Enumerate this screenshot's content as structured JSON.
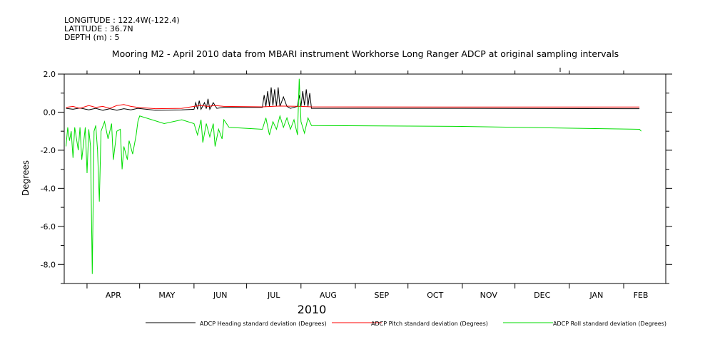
{
  "header": {
    "longitude": "LONGITUDE : 122.4W(-122.4)",
    "latitude": "LATITUDE : 36.7N",
    "depth": "DEPTH (m) : 5"
  },
  "chart_data": {
    "type": "line",
    "title": "Mooring M2 - April 2010 data from MBARI instrument Workhorse Long Ranger ADCP at original sampling intervals",
    "xlabel": "2010",
    "ylabel": "Degrees",
    "ylim": [
      -9.0,
      2.0
    ],
    "xlim": [
      "2010-03-19",
      "2011-02-25"
    ],
    "x_ticks": [
      "2010-04-01",
      "2010-05-01",
      "2010-06-01",
      "2010-07-01",
      "2010-08-01",
      "2010-09-01",
      "2010-10-01",
      "2010-11-01",
      "2010-12-01",
      "2011-01-01",
      "2011-02-01"
    ],
    "x_tick_labels": [
      "APR",
      "MAY",
      "JUN",
      "JUL",
      "AUG",
      "SEP",
      "OCT",
      "NOV",
      "DEC",
      "JAN",
      "FEB"
    ],
    "y_ticks": [
      2.0,
      0.0,
      -2.0,
      -4.0,
      -6.0,
      -8.0
    ],
    "y_tick_labels": [
      "2.0",
      "0.0",
      "-2.0",
      "-4.0",
      "-6.0",
      "-8.0"
    ],
    "grid": false,
    "legend_position": "bottom",
    "series": [
      {
        "name": "ADCP Heading standard deviation (Degrees)",
        "color": "#000000",
        "points": [
          [
            "2010-03-20",
            0.2
          ],
          [
            "2010-03-24",
            0.15
          ],
          [
            "2010-03-28",
            0.22
          ],
          [
            "2010-04-02",
            0.12
          ],
          [
            "2010-04-06",
            0.2
          ],
          [
            "2010-04-10",
            0.1
          ],
          [
            "2010-04-14",
            0.18
          ],
          [
            "2010-04-18",
            0.1
          ],
          [
            "2010-04-22",
            0.18
          ],
          [
            "2010-04-26",
            0.12
          ],
          [
            "2010-04-30",
            0.2
          ],
          [
            "2010-05-10",
            0.1
          ],
          [
            "2010-05-25",
            0.12
          ],
          [
            "2010-06-01",
            0.15
          ],
          [
            "2010-06-02",
            0.5
          ],
          [
            "2010-06-03",
            0.15
          ],
          [
            "2010-06-04",
            0.6
          ],
          [
            "2010-06-05",
            0.15
          ],
          [
            "2010-06-07",
            0.5
          ],
          [
            "2010-06-08",
            0.18
          ],
          [
            "2010-06-09",
            0.7
          ],
          [
            "2010-06-10",
            0.15
          ],
          [
            "2010-06-12",
            0.5
          ],
          [
            "2010-06-14",
            0.2
          ],
          [
            "2010-06-18",
            0.25
          ],
          [
            "2010-07-10",
            0.25
          ],
          [
            "2010-07-11",
            0.9
          ],
          [
            "2010-07-12",
            0.3
          ],
          [
            "2010-07-13",
            1.1
          ],
          [
            "2010-07-14",
            0.3
          ],
          [
            "2010-07-15",
            1.3
          ],
          [
            "2010-07-16",
            0.35
          ],
          [
            "2010-07-17",
            1.2
          ],
          [
            "2010-07-18",
            0.3
          ],
          [
            "2010-07-19",
            1.3
          ],
          [
            "2010-07-20",
            0.3
          ],
          [
            "2010-07-22",
            0.8
          ],
          [
            "2010-07-24",
            0.3
          ],
          [
            "2010-07-26",
            0.2
          ],
          [
            "2010-07-30",
            0.3
          ],
          [
            "2010-07-31",
            0.9
          ],
          [
            "2010-08-01",
            0.3
          ],
          [
            "2010-08-02",
            1.1
          ],
          [
            "2010-08-03",
            0.35
          ],
          [
            "2010-08-04",
            1.2
          ],
          [
            "2010-08-05",
            0.3
          ],
          [
            "2010-08-06",
            1.0
          ],
          [
            "2010-08-07",
            0.2
          ],
          [
            "2010-11-01",
            0.2
          ],
          [
            "2011-02-01",
            0.18
          ],
          [
            "2011-02-10",
            0.18
          ]
        ]
      },
      {
        "name": "ADCP Pitch standard deviation (Degrees)",
        "color": "#ff0000",
        "points": [
          [
            "2010-03-20",
            0.25
          ],
          [
            "2010-03-24",
            0.3
          ],
          [
            "2010-03-28",
            0.2
          ],
          [
            "2010-04-02",
            0.35
          ],
          [
            "2010-04-06",
            0.25
          ],
          [
            "2010-04-10",
            0.3
          ],
          [
            "2010-04-14",
            0.2
          ],
          [
            "2010-04-18",
            0.35
          ],
          [
            "2010-04-22",
            0.4
          ],
          [
            "2010-04-26",
            0.3
          ],
          [
            "2010-04-30",
            0.25
          ],
          [
            "2010-05-10",
            0.18
          ],
          [
            "2010-05-25",
            0.2
          ],
          [
            "2010-06-01",
            0.3
          ],
          [
            "2010-06-05",
            0.35
          ],
          [
            "2010-06-09",
            0.3
          ],
          [
            "2010-06-13",
            0.35
          ],
          [
            "2010-06-18",
            0.3
          ],
          [
            "2010-07-10",
            0.28
          ],
          [
            "2010-07-20",
            0.32
          ],
          [
            "2010-08-01",
            0.3
          ],
          [
            "2010-08-07",
            0.28
          ],
          [
            "2010-11-01",
            0.27
          ],
          [
            "2011-02-10",
            0.27
          ]
        ]
      },
      {
        "name": "ADCP Roll standard deviation (Degrees)",
        "color": "#00dd00",
        "points": [
          [
            "2010-03-20",
            -1.8
          ],
          [
            "2010-03-21",
            -0.8
          ],
          [
            "2010-03-22",
            -1.5
          ],
          [
            "2010-03-23",
            -1.0
          ],
          [
            "2010-03-24",
            -2.4
          ],
          [
            "2010-03-25",
            -0.8
          ],
          [
            "2010-03-27",
            -2.0
          ],
          [
            "2010-03-28",
            -0.8
          ],
          [
            "2010-03-29",
            -2.5
          ],
          [
            "2010-03-31",
            -0.8
          ],
          [
            "2010-04-01",
            -3.2
          ],
          [
            "2010-04-02",
            -0.9
          ],
          [
            "2010-04-03",
            -1.8
          ],
          [
            "2010-04-04",
            -8.5
          ],
          [
            "2010-04-05",
            -1.0
          ],
          [
            "2010-04-06",
            -0.7
          ],
          [
            "2010-04-07",
            -2.0
          ],
          [
            "2010-04-08",
            -4.7
          ],
          [
            "2010-04-09",
            -1.0
          ],
          [
            "2010-04-11",
            -0.5
          ],
          [
            "2010-04-13",
            -1.4
          ],
          [
            "2010-04-15",
            -0.6
          ],
          [
            "2010-04-16",
            -2.5
          ],
          [
            "2010-04-18",
            -1.0
          ],
          [
            "2010-04-20",
            -0.9
          ],
          [
            "2010-04-21",
            -3.0
          ],
          [
            "2010-04-22",
            -1.8
          ],
          [
            "2010-04-24",
            -2.5
          ],
          [
            "2010-04-25",
            -1.5
          ],
          [
            "2010-04-27",
            -2.2
          ],
          [
            "2010-04-29",
            -1.2
          ],
          [
            "2010-04-30",
            -0.5
          ],
          [
            "2010-05-01",
            -0.2
          ],
          [
            "2010-05-15",
            -0.6
          ],
          [
            "2010-05-25",
            -0.4
          ],
          [
            "2010-06-01",
            -0.6
          ],
          [
            "2010-06-03",
            -1.2
          ],
          [
            "2010-06-05",
            -0.4
          ],
          [
            "2010-06-06",
            -1.6
          ],
          [
            "2010-06-08",
            -0.6
          ],
          [
            "2010-06-10",
            -1.3
          ],
          [
            "2010-06-12",
            -0.6
          ],
          [
            "2010-06-13",
            -1.8
          ],
          [
            "2010-06-15",
            -0.9
          ],
          [
            "2010-06-17",
            -1.4
          ],
          [
            "2010-06-18",
            -0.4
          ],
          [
            "2010-06-21",
            -0.8
          ],
          [
            "2010-07-10",
            -0.9
          ],
          [
            "2010-07-12",
            -0.3
          ],
          [
            "2010-07-14",
            -1.2
          ],
          [
            "2010-07-16",
            -0.5
          ],
          [
            "2010-07-18",
            -0.9
          ],
          [
            "2010-07-20",
            -0.2
          ],
          [
            "2010-07-22",
            -0.8
          ],
          [
            "2010-07-24",
            -0.3
          ],
          [
            "2010-07-26",
            -0.9
          ],
          [
            "2010-07-28",
            -0.4
          ],
          [
            "2010-07-30",
            -1.2
          ],
          [
            "2010-07-31",
            1.75
          ],
          [
            "2010-08-01",
            -0.5
          ],
          [
            "2010-08-03",
            -1.1
          ],
          [
            "2010-08-05",
            -0.3
          ],
          [
            "2010-08-07",
            -0.7
          ],
          [
            "2010-11-01",
            -0.75
          ],
          [
            "2011-02-10",
            -0.9
          ],
          [
            "2011-02-11",
            -1.0
          ]
        ]
      }
    ]
  }
}
